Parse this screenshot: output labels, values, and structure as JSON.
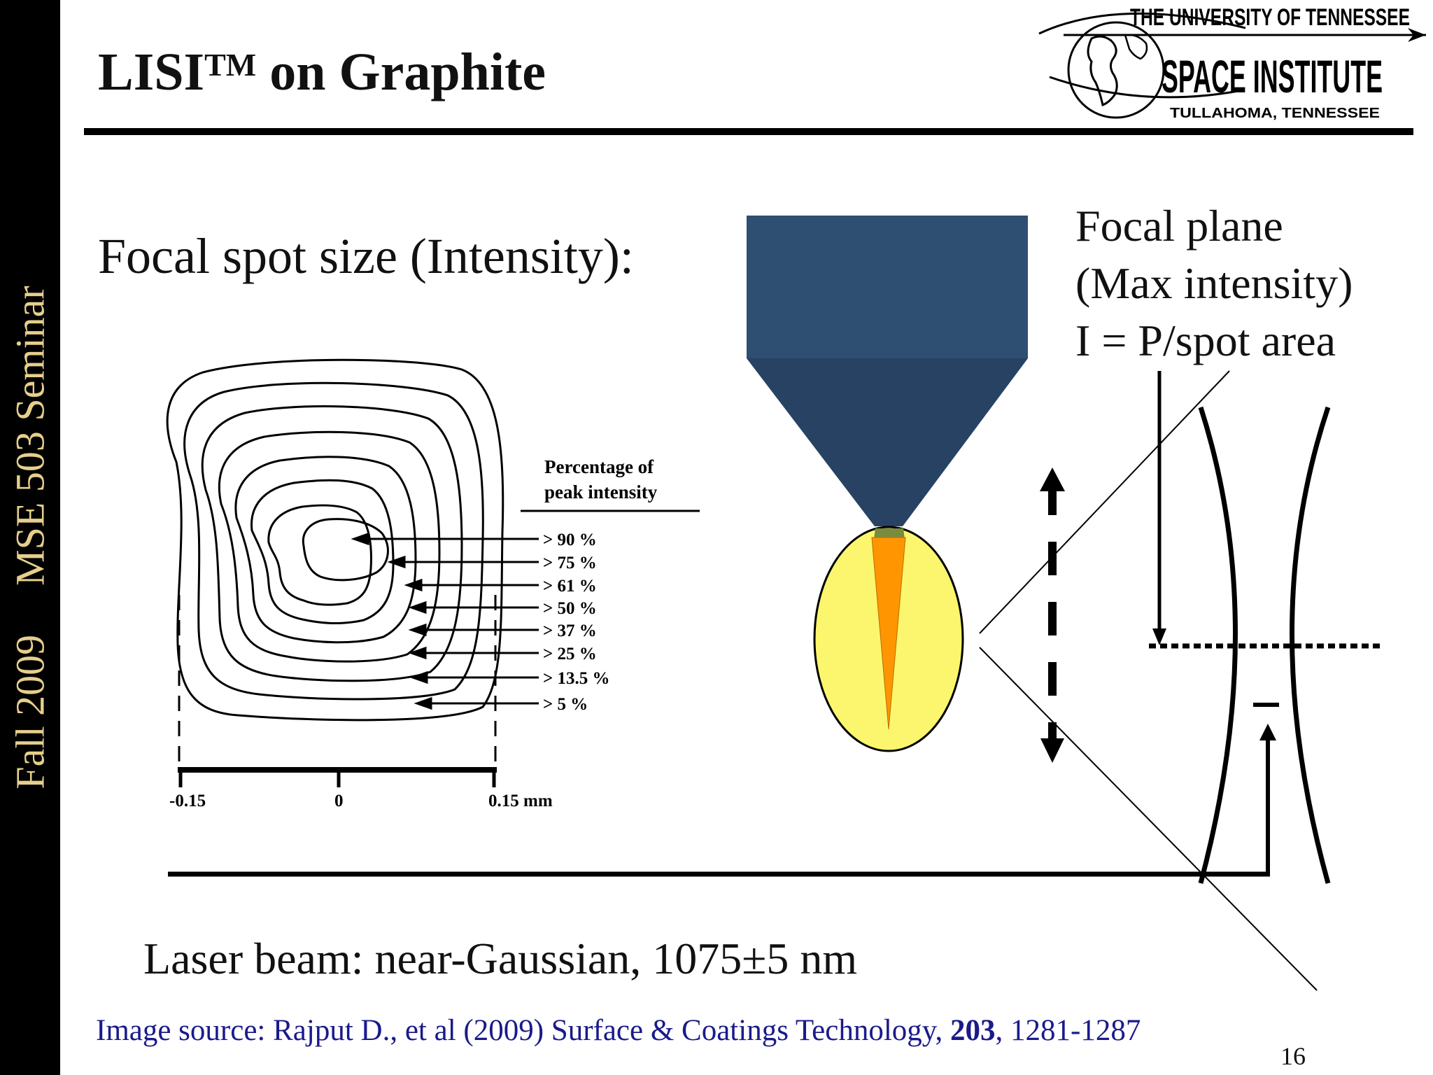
{
  "sidebar": {
    "course": "MSE 503 Seminar",
    "term": "Fall 2009"
  },
  "title": {
    "main": "LISI",
    "trademark": "TM",
    "rest": " on Graphite"
  },
  "logo": {
    "line1": "The University of Tennessee",
    "line2": "Space Institute",
    "line3": "TULLAHOMA, TENNESSEE"
  },
  "subtitle": "Focal spot size (Intensity):",
  "contour": {
    "legend_title_line1": "Percentage of",
    "legend_title_line2": "peak intensity",
    "levels": [
      "> 90 %",
      "> 75 %",
      "> 61 %",
      "> 50 %",
      "> 37 %",
      "> 25 %",
      "> 13.5 %",
      "> 5 %"
    ],
    "scale": {
      "left": "-0.15",
      "center": "0",
      "right": "0.15 mm"
    }
  },
  "focal_plane": {
    "line1": "Focal plane",
    "line2": "(Max intensity)",
    "line3": "I = P/spot area"
  },
  "laser": "Laser beam: near-Gaussian, 1075±5 nm",
  "source": {
    "prefix": "Image source: Rajput D., et al (2009) Surface & Coatings Technology, ",
    "volume": "203",
    "pages": ", 1281-1287"
  },
  "page_number": "16",
  "colors": {
    "nozzle": "#2e4e72",
    "nozzle_cone": "#274263",
    "spot": "#fbf66d",
    "beam": "#ff9500",
    "sidebar_text": "#e6cf8c",
    "source_text": "#1a1a8c"
  }
}
